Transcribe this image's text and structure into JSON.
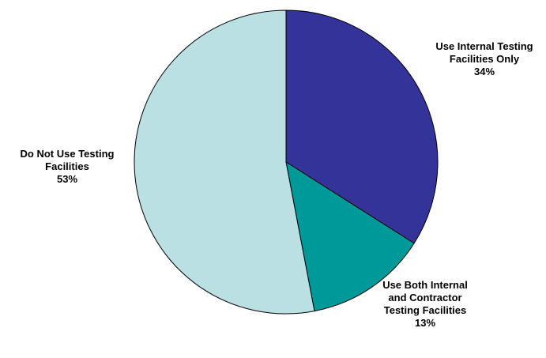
{
  "chart_data": {
    "type": "pie",
    "title": "",
    "start_angle_deg": 0,
    "direction": "clockwise",
    "slices": [
      {
        "label_lines": [
          "Use Internal Testing",
          "Facilities Only"
        ],
        "percent_label": "34%",
        "value": 34,
        "color": "#333399"
      },
      {
        "label_lines": [
          "Use Both Internal",
          "and Contractor",
          "Testing Facilities"
        ],
        "percent_label": "13%",
        "value": 13,
        "color": "#009999"
      },
      {
        "label_lines": [
          "Do Not Use Testing",
          "Facilities"
        ],
        "percent_label": "53%",
        "value": 53,
        "color": "#bbe0e3"
      }
    ]
  }
}
